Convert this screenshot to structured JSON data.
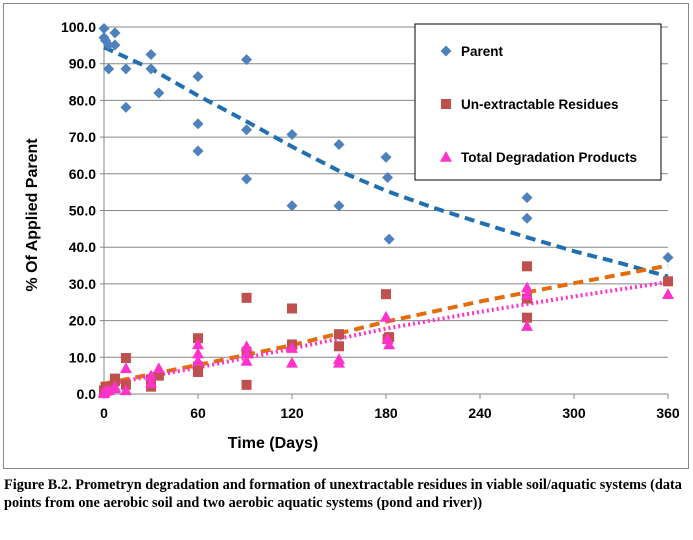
{
  "chart_data": {
    "type": "scatter",
    "xlabel": "Time (Days)",
    "ylabel": "% Of Applied Parent",
    "xlim": [
      0,
      360
    ],
    "ylim": [
      0,
      100
    ],
    "x_ticks": [
      "0",
      "60",
      "120",
      "180",
      "240",
      "300",
      "360"
    ],
    "y_ticks": [
      "0.0",
      "10.0",
      "20.0",
      "30.0",
      "40.0",
      "50.0",
      "60.0",
      "70.0",
      "80.0",
      "90.0",
      "100.0"
    ],
    "x_tick_values": [
      0,
      60,
      120,
      180,
      240,
      300,
      360
    ],
    "y_tick_values": [
      0,
      10,
      20,
      30,
      40,
      50,
      60,
      70,
      80,
      90,
      100
    ],
    "grid": "horizontal",
    "legend_position": "top-right",
    "series": [
      {
        "name": "Parent",
        "marker": "diamond",
        "color": "#4F81BD",
        "trend_color": "#1F6FB2",
        "trend_style": "dashed",
        "points": [
          [
            0,
            99.6
          ],
          [
            0,
            97.1
          ],
          [
            1,
            96.3
          ],
          [
            3,
            95.1
          ],
          [
            3,
            88.6
          ],
          [
            7,
            98.4
          ],
          [
            7,
            95.1
          ],
          [
            14,
            88.6
          ],
          [
            14,
            78.1
          ],
          [
            30,
            92.5
          ],
          [
            30,
            88.6
          ],
          [
            35,
            82
          ],
          [
            60,
            86.5
          ],
          [
            60,
            73.6
          ],
          [
            60,
            66.2
          ],
          [
            91,
            91.1
          ],
          [
            91,
            72
          ],
          [
            91,
            58.6
          ],
          [
            120,
            70.7
          ],
          [
            120,
            51.3
          ],
          [
            150,
            68
          ],
          [
            150,
            51.3
          ],
          [
            180,
            64.5
          ],
          [
            181,
            59
          ],
          [
            182,
            42.2
          ],
          [
            270,
            53.5
          ],
          [
            270,
            47.9
          ],
          [
            360,
            37.2
          ]
        ],
        "trend": [
          [
            0,
            94.5
          ],
          [
            30,
            88.6
          ],
          [
            60,
            81.3
          ],
          [
            90,
            74.5
          ],
          [
            120,
            67.4
          ],
          [
            150,
            60.8
          ],
          [
            180,
            55.4
          ],
          [
            210,
            50.8
          ],
          [
            240,
            46.7
          ],
          [
            270,
            42.7
          ],
          [
            300,
            38.9
          ],
          [
            330,
            35.6
          ],
          [
            360,
            32
          ]
        ]
      },
      {
        "name": "Un-extractable Residues",
        "marker": "square",
        "color": "#C0504D",
        "trend_color": "#E46C0A",
        "trend_style": "dashed",
        "points": [
          [
            0,
            0.5
          ],
          [
            0,
            1
          ],
          [
            1,
            2
          ],
          [
            3,
            1.5
          ],
          [
            7,
            4.2
          ],
          [
            7,
            3.5
          ],
          [
            14,
            9.8
          ],
          [
            14,
            2.5
          ],
          [
            30,
            2
          ],
          [
            30,
            4
          ],
          [
            35,
            5
          ],
          [
            60,
            15.2
          ],
          [
            60,
            7.5
          ],
          [
            60,
            6
          ],
          [
            91,
            26.2
          ],
          [
            91,
            11.5
          ],
          [
            91,
            2.5
          ],
          [
            120,
            23.3
          ],
          [
            120,
            13.5
          ],
          [
            150,
            16.3
          ],
          [
            150,
            13
          ],
          [
            180,
            27.2
          ],
          [
            181,
            15
          ],
          [
            182,
            15.5
          ],
          [
            270,
            34.8
          ],
          [
            270,
            26
          ],
          [
            270,
            20.8
          ],
          [
            360,
            30.7
          ]
        ],
        "trend": [
          [
            0,
            2.8
          ],
          [
            60,
            7.9
          ],
          [
            120,
            13.3
          ],
          [
            180,
            19.7
          ],
          [
            240,
            25.2
          ],
          [
            300,
            30.2
          ],
          [
            360,
            35
          ]
        ]
      },
      {
        "name": "Total Degradation Products",
        "marker": "triangle",
        "color": "#FF33CC",
        "trend_color": "#FF33CC",
        "trend_style": "dotted",
        "points": [
          [
            0,
            0.2
          ],
          [
            0,
            0.5
          ],
          [
            1,
            0.8
          ],
          [
            3,
            1
          ],
          [
            7,
            2
          ],
          [
            7,
            1.5
          ],
          [
            14,
            7
          ],
          [
            14,
            1
          ],
          [
            30,
            3
          ],
          [
            30,
            5
          ],
          [
            35,
            7
          ],
          [
            60,
            13.5
          ],
          [
            60,
            11
          ],
          [
            60,
            9
          ],
          [
            91,
            13
          ],
          [
            91,
            11
          ],
          [
            91,
            9
          ],
          [
            120,
            12.5
          ],
          [
            120,
            8.5
          ],
          [
            150,
            9.5
          ],
          [
            150,
            8.5
          ],
          [
            180,
            21
          ],
          [
            181,
            15
          ],
          [
            182,
            13.5
          ],
          [
            270,
            29
          ],
          [
            270,
            27
          ],
          [
            270,
            18.5
          ],
          [
            360,
            27.2
          ]
        ],
        "trend": [
          [
            0,
            2.5
          ],
          [
            60,
            7.2
          ],
          [
            120,
            12.4
          ],
          [
            180,
            17.8
          ],
          [
            240,
            22.4
          ],
          [
            300,
            26.6
          ],
          [
            360,
            30.5
          ]
        ]
      }
    ]
  },
  "caption": "Figure B.2. Prometryn degradation and formation of unextractable residues in viable soil/aquatic systems (data points from one aerobic soil and two aerobic aquatic systems (pond and river))"
}
